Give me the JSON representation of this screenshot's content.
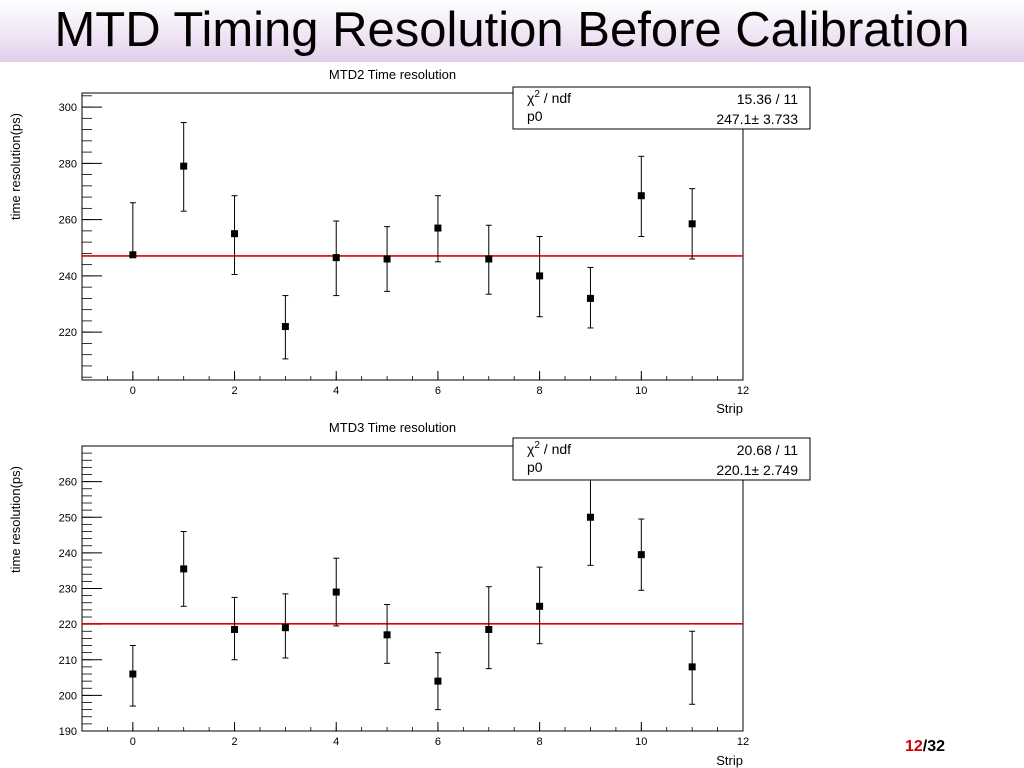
{
  "slide_title": "MTD Timing Resolution Before Calibration",
  "page": {
    "current": "12",
    "separator": "/",
    "total": "32"
  },
  "colors": {
    "fit_line": "#e00000",
    "markers": "#000000",
    "title_gradient": "#e2cfea",
    "page_current": "#cc0000"
  },
  "chart_data": [
    {
      "type": "scatter",
      "title": "MTD2 Time resolution",
      "xlabel": "Strip",
      "ylabel": "time resolution(ps)",
      "xlim": [
        -1,
        12
      ],
      "ylim": [
        203,
        305
      ],
      "x_ticks": [
        0,
        2,
        4,
        6,
        8,
        10,
        12
      ],
      "x_tick_labels": [
        "0",
        "2",
        "4",
        "6",
        "8",
        "10",
        "12"
      ],
      "y_ticks": [
        220,
        240,
        260,
        280,
        300
      ],
      "y_tick_labels": [
        "220",
        "240",
        "260",
        "280",
        "300"
      ],
      "y_minor_step": 4,
      "x_minor_step": 0.5,
      "x": [
        0,
        1,
        2,
        3,
        4,
        5,
        6,
        7,
        8,
        9,
        10,
        11
      ],
      "y": [
        247.5,
        279,
        255,
        222,
        246.5,
        246,
        257,
        246,
        240,
        232,
        268.5,
        258.5
      ],
      "err_low": [
        247.5,
        263,
        240.5,
        210.5,
        233,
        234.5,
        245,
        233.5,
        225.5,
        221.5,
        254,
        246
      ],
      "err_high": [
        266,
        294.5,
        268.5,
        233,
        259.5,
        257.5,
        268.5,
        258,
        254,
        243,
        282.5,
        271
      ],
      "fit_value": 247.1,
      "stats": {
        "chi2_label": "χ",
        "chi2_sup": "2",
        "chi2_rest": " / ndf",
        "chi2_value": "15.36 / 11",
        "p0_label": "p0",
        "p0_value": "247.1",
        "p0_pm": "±",
        "p0_err": "3.733"
      }
    },
    {
      "type": "scatter",
      "title": "MTD3 Time resolution",
      "xlabel": "Strip",
      "ylabel": "time resolution(ps)",
      "xlim": [
        -1,
        12
      ],
      "ylim": [
        190,
        270
      ],
      "x_ticks": [
        0,
        2,
        4,
        6,
        8,
        10,
        12
      ],
      "x_tick_labels": [
        "0",
        "2",
        "4",
        "6",
        "8",
        "10",
        "12"
      ],
      "y_ticks": [
        190,
        200,
        210,
        220,
        230,
        240,
        250,
        260
      ],
      "y_tick_labels": [
        "190",
        "200",
        "210",
        "220",
        "230",
        "240",
        "250",
        "260"
      ],
      "y_minor_step": 2,
      "x_minor_step": 0.5,
      "x": [
        0,
        1,
        2,
        3,
        4,
        5,
        6,
        7,
        8,
        9,
        10,
        11
      ],
      "y": [
        206,
        235.5,
        218.5,
        219,
        229,
        217,
        204,
        218.5,
        225,
        250,
        239.5,
        208
      ],
      "err_low": [
        197,
        225,
        210,
        210.5,
        219.5,
        209,
        196,
        207.5,
        214.5,
        236.5,
        229.5,
        197.5
      ],
      "err_high": [
        214,
        246,
        227.5,
        228.5,
        238.5,
        225.5,
        212,
        230.5,
        236,
        263,
        249.5,
        218
      ],
      "fit_value": 220.1,
      "stats": {
        "chi2_label": "χ",
        "chi2_sup": "2",
        "chi2_rest": " / ndf",
        "chi2_value": "20.68 / 11",
        "p0_label": "p0",
        "p0_value": "220.1",
        "p0_pm": "±",
        "p0_err": "2.749"
      }
    }
  ]
}
